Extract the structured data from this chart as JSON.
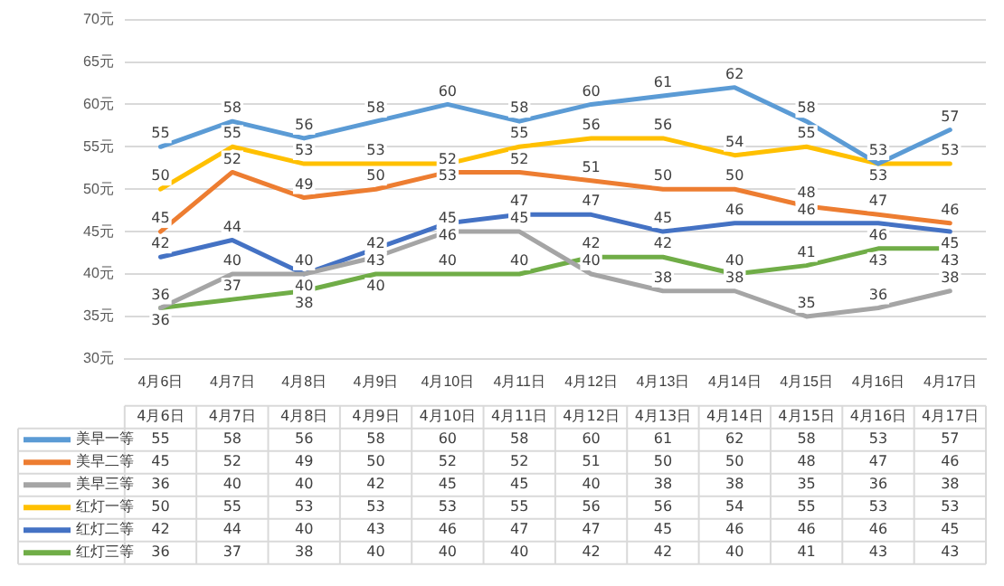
{
  "chart_data": {
    "type": "line",
    "categories": [
      "4月6日",
      "4月7日",
      "4月8日",
      "4月9日",
      "4月10日",
      "4月11日",
      "4月12日",
      "4月13日",
      "4月14日",
      "4月15日",
      "4月16日",
      "4月17日"
    ],
    "series": [
      {
        "name": "美早一等",
        "color": "#5b9bd5",
        "values": [
          55,
          58,
          56,
          58,
          60,
          58,
          60,
          61,
          62,
          58,
          53,
          57
        ]
      },
      {
        "name": "美早二等",
        "color": "#ed7d31",
        "values": [
          45,
          52,
          49,
          50,
          52,
          52,
          51,
          50,
          50,
          48,
          47,
          46
        ]
      },
      {
        "name": "美早三等",
        "color": "#a5a5a5",
        "values": [
          36,
          40,
          40,
          42,
          45,
          45,
          40,
          38,
          38,
          35,
          36,
          38
        ]
      },
      {
        "name": "红灯一等",
        "color": "#ffc000",
        "values": [
          50,
          55,
          53,
          53,
          53,
          55,
          56,
          56,
          54,
          55,
          53,
          53
        ]
      },
      {
        "name": "红灯二等",
        "color": "#4472c4",
        "values": [
          42,
          44,
          40,
          43,
          46,
          47,
          47,
          45,
          46,
          46,
          46,
          45
        ]
      },
      {
        "name": "红灯三等",
        "color": "#70ad47",
        "values": [
          36,
          37,
          38,
          40,
          40,
          40,
          42,
          42,
          40,
          41,
          43,
          43
        ]
      }
    ],
    "ylim": [
      30,
      70
    ],
    "yticks": [
      {
        "value": 30,
        "label": "30元"
      },
      {
        "value": 35,
        "label": "35元"
      },
      {
        "value": 40,
        "label": "40元"
      },
      {
        "value": 45,
        "label": "45元"
      },
      {
        "value": 50,
        "label": "50元"
      },
      {
        "value": 55,
        "label": "55元"
      },
      {
        "value": 60,
        "label": "60元"
      },
      {
        "value": 65,
        "label": "65元"
      },
      {
        "value": 70,
        "label": "70元"
      }
    ],
    "grid": "y",
    "marker": "none",
    "line_style": "solid",
    "data_labels": true,
    "legend": "bottom",
    "annotations": [
      {
        "text": "55",
        "x": "4月6日",
        "y": 55
      },
      {
        "text": "58",
        "x": "4月7日",
        "y": 58
      },
      {
        "text": "56",
        "x": "4月8日",
        "y": 56
      },
      {
        "text": "58",
        "x": "4月9日",
        "y": 58
      },
      {
        "text": "60",
        "x": "4月10日",
        "y": 60
      },
      {
        "text": "58",
        "x": "4月11日",
        "y": 58
      },
      {
        "text": "60",
        "x": "4月12日",
        "y": 60
      },
      {
        "text": "61",
        "x": "4月13日",
        "y": 61
      },
      {
        "text": "62",
        "x": "4月14日",
        "y": 62
      },
      {
        "text": "58",
        "x": "4月15日",
        "y": 58
      },
      {
        "text": "53",
        "x": "4月16日",
        "y": 53
      },
      {
        "text": "57",
        "x": "4月17日",
        "y": 57
      },
      {
        "text": "45",
        "x": "4月6日",
        "y": 45
      },
      {
        "text": "52",
        "x": "4月7日",
        "y": 52
      },
      {
        "text": "49",
        "x": "4月8日",
        "y": 49
      },
      {
        "text": "50",
        "x": "4月9日",
        "y": 50
      },
      {
        "text": "52",
        "x": "4月10日",
        "y": 52
      },
      {
        "text": "52",
        "x": "4月11日",
        "y": 52
      },
      {
        "text": "51",
        "x": "4月12日",
        "y": 51
      },
      {
        "text": "50",
        "x": "4月13日",
        "y": 50
      },
      {
        "text": "50",
        "x": "4月14日",
        "y": 50
      },
      {
        "text": "48",
        "x": "4月15日",
        "y": 48
      },
      {
        "text": "47",
        "x": "4月16日",
        "y": 47
      },
      {
        "text": "46",
        "x": "4月17日",
        "y": 46
      },
      {
        "text": "36",
        "x": "4月6日",
        "y": 36
      },
      {
        "text": "40",
        "x": "4月7日",
        "y": 40
      },
      {
        "text": "40",
        "x": "4月8日",
        "y": 40
      },
      {
        "text": "42",
        "x": "4月9日",
        "y": 42
      },
      {
        "text": "45",
        "x": "4月10日",
        "y": 45
      },
      {
        "text": "45",
        "x": "4月11日",
        "y": 45
      },
      {
        "text": "40",
        "x": "4月12日",
        "y": 40
      },
      {
        "text": "38",
        "x": "4月13日",
        "y": 38
      },
      {
        "text": "38",
        "x": "4月14日",
        "y": 38
      },
      {
        "text": "35",
        "x": "4月15日",
        "y": 35
      },
      {
        "text": "36",
        "x": "4月16日",
        "y": 36
      },
      {
        "text": "38",
        "x": "4月17日",
        "y": 38
      },
      {
        "text": "50",
        "x": "4月6日",
        "y": 50
      },
      {
        "text": "55",
        "x": "4月7日",
        "y": 55
      },
      {
        "text": "53",
        "x": "4月8日",
        "y": 53
      },
      {
        "text": "53",
        "x": "4月9日",
        "y": 53
      },
      {
        "text": "53",
        "x": "4月10日",
        "y": 53
      },
      {
        "text": "55",
        "x": "4月11日",
        "y": 55
      },
      {
        "text": "56",
        "x": "4月12日",
        "y": 56
      },
      {
        "text": "56",
        "x": "4月13日",
        "y": 56
      },
      {
        "text": "54",
        "x": "4月14日",
        "y": 54
      },
      {
        "text": "55",
        "x": "4月15日",
        "y": 55
      },
      {
        "text": "53",
        "x": "4月16日",
        "y": 53
      },
      {
        "text": "53",
        "x": "4月17日",
        "y": 53
      },
      {
        "text": "42",
        "x": "4月6日",
        "y": 42
      },
      {
        "text": "44",
        "x": "4月7日",
        "y": 44
      },
      {
        "text": "40",
        "x": "4月8日",
        "y": 40
      },
      {
        "text": "43",
        "x": "4月9日",
        "y": 43
      },
      {
        "text": "46",
        "x": "4月10日",
        "y": 46
      },
      {
        "text": "47",
        "x": "4月11日",
        "y": 47
      },
      {
        "text": "47",
        "x": "4月12日",
        "y": 47
      },
      {
        "text": "45",
        "x": "4月13日",
        "y": 45
      },
      {
        "text": "46",
        "x": "4月14日",
        "y": 46
      },
      {
        "text": "46",
        "x": "4月15日",
        "y": 46
      },
      {
        "text": "46",
        "x": "4月16日",
        "y": 46
      },
      {
        "text": "45",
        "x": "4月17日",
        "y": 45
      },
      {
        "text": "36",
        "x": "4月6日",
        "y": 36
      },
      {
        "text": "37",
        "x": "4月7日",
        "y": 37
      },
      {
        "text": "38",
        "x": "4月8日",
        "y": 38
      },
      {
        "text": "40",
        "x": "4月9日",
        "y": 40
      },
      {
        "text": "40",
        "x": "4月10日",
        "y": 40
      },
      {
        "text": "40",
        "x": "4月11日",
        "y": 40
      },
      {
        "text": "42",
        "x": "4月12日",
        "y": 42
      },
      {
        "text": "42",
        "x": "4月13日",
        "y": 42
      },
      {
        "text": "40",
        "x": "4月14日",
        "y": 40
      },
      {
        "text": "41",
        "x": "4月15日",
        "y": 41
      },
      {
        "text": "43",
        "x": "4月16日",
        "y": 43
      },
      {
        "text": "43",
        "x": "4月17日",
        "y": 43
      }
    ]
  }
}
